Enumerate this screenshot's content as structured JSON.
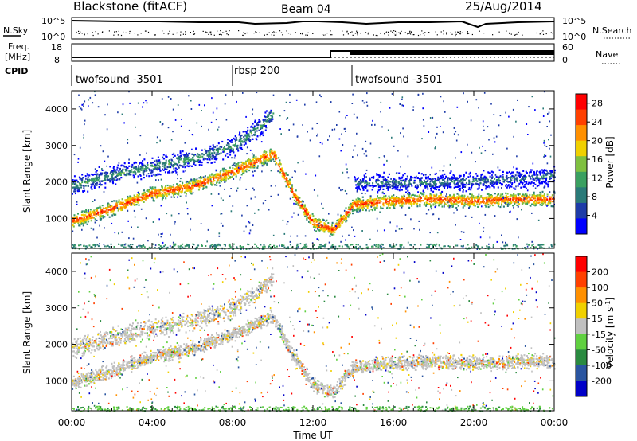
{
  "header": {
    "station": "Blackstone (fitACF)",
    "beam": "Beam 04",
    "date": "25/Aug/2014"
  },
  "noise_panel": {
    "left_label": "N.Sky",
    "left_ticks": [
      "10^5",
      "10^0"
    ],
    "right_ticks": [
      "10^5",
      "10^0"
    ],
    "right_label": "N.Search"
  },
  "freq_panel": {
    "left_label_line1": "Freq.",
    "left_label_line2": "[MHz]",
    "left_ticks": [
      "18",
      "8"
    ],
    "right_ticks": [
      "60",
      "0"
    ],
    "right_label": "Nave"
  },
  "cpid_panel": {
    "label": "CPID",
    "segments": [
      {
        "name": "twofsound -3501",
        "start_hour": 0
      },
      {
        "name": "rbsp 200",
        "start_hour": 7.5
      },
      {
        "name": "twofsound -3501",
        "start_hour": 14
      }
    ]
  },
  "chart_data": [
    {
      "type": "heatmap",
      "title": "",
      "xlabel": "Time UT",
      "ylabel": "Slant Range [km]",
      "xticks": [
        "00:00",
        "04:00",
        "08:00",
        "12:00",
        "16:00",
        "20:00",
        "00:00"
      ],
      "xlim_hours": [
        0,
        24
      ],
      "yticks": [
        "1000",
        "2000",
        "3000",
        "4000"
      ],
      "ylim": [
        180,
        4500
      ],
      "colorbar": {
        "label": "Power [dB]",
        "ticks": [
          "4",
          "8",
          "12",
          "16",
          "20",
          "24",
          "28"
        ],
        "range": [
          0,
          30
        ],
        "colors": [
          "#0000ff",
          "#1e3ca8",
          "#2a7a78",
          "#3aa060",
          "#7fc040",
          "#f0d000",
          "#ff9000",
          "#ff4000",
          "#ff0000"
        ]
      },
      "scatter_bands": [
        {
          "note": "ground scatter",
          "points": [
            [
              0,
              950
            ],
            [
              2,
              1300
            ],
            [
              4,
              1700
            ],
            [
              6,
              1900
            ],
            [
              8,
              2300
            ],
            [
              10,
              2800
            ],
            [
              11,
              1700
            ],
            [
              12,
              900
            ],
            [
              13,
              700
            ],
            [
              14,
              1400
            ],
            [
              16,
              1500
            ],
            [
              18,
              1550
            ],
            [
              20,
              1500
            ],
            [
              22,
              1550
            ],
            [
              24,
              1550
            ]
          ],
          "power_db": 26
        },
        {
          "note": "upper band",
          "points": [
            [
              0,
              1900
            ],
            [
              2,
              2200
            ],
            [
              4,
              2450
            ],
            [
              6,
              2650
            ],
            [
              8,
              3000
            ],
            [
              9.5,
              3600
            ],
            [
              10,
              3900
            ]
          ],
          "power_db": 12
        },
        {
          "note": "far band",
          "points": [
            [
              14,
              2000
            ],
            [
              18,
              2000
            ],
            [
              22,
              2100
            ],
            [
              24,
              2200
            ]
          ],
          "power_db": 9
        }
      ]
    },
    {
      "type": "heatmap",
      "title": "",
      "xlabel": "Time UT",
      "ylabel": "Slant Range [km]",
      "xticks": [
        "00:00",
        "04:00",
        "08:00",
        "12:00",
        "16:00",
        "20:00",
        "00:00"
      ],
      "xlim_hours": [
        0,
        24
      ],
      "yticks": [
        "1000",
        "2000",
        "3000",
        "4000"
      ],
      "ylim": [
        180,
        4500
      ],
      "colorbar": {
        "label": "Velocity [m s^-1]",
        "ticks": [
          "200",
          "100",
          "50",
          "15",
          "-15",
          "-50",
          "-100",
          "-200"
        ],
        "range": [
          -250,
          250
        ],
        "colors": [
          "#0000c8",
          "#2a55a0",
          "#2a8a40",
          "#60d040",
          "#c0c0c0",
          "#f0d000",
          "#ff9000",
          "#ff4000",
          "#ff0000"
        ]
      },
      "scatter_bands": [
        {
          "note": "ground scatter (grey)",
          "points": [
            [
              0,
              950
            ],
            [
              2,
              1300
            ],
            [
              4,
              1700
            ],
            [
              6,
              1900
            ],
            [
              8,
              2300
            ],
            [
              10,
              2800
            ],
            [
              11,
              1700
            ],
            [
              12,
              900
            ],
            [
              13,
              700
            ],
            [
              14,
              1400
            ],
            [
              16,
              1500
            ],
            [
              18,
              1550
            ],
            [
              20,
              1500
            ],
            [
              22,
              1550
            ],
            [
              24,
              1550
            ]
          ],
          "velocity": 0
        },
        {
          "note": "upper band",
          "points": [
            [
              0,
              1900
            ],
            [
              2,
              2200
            ],
            [
              4,
              2450
            ],
            [
              6,
              2650
            ],
            [
              8,
              3000
            ],
            [
              9.5,
              3600
            ],
            [
              10,
              3900
            ]
          ],
          "velocity": -30
        }
      ]
    }
  ]
}
